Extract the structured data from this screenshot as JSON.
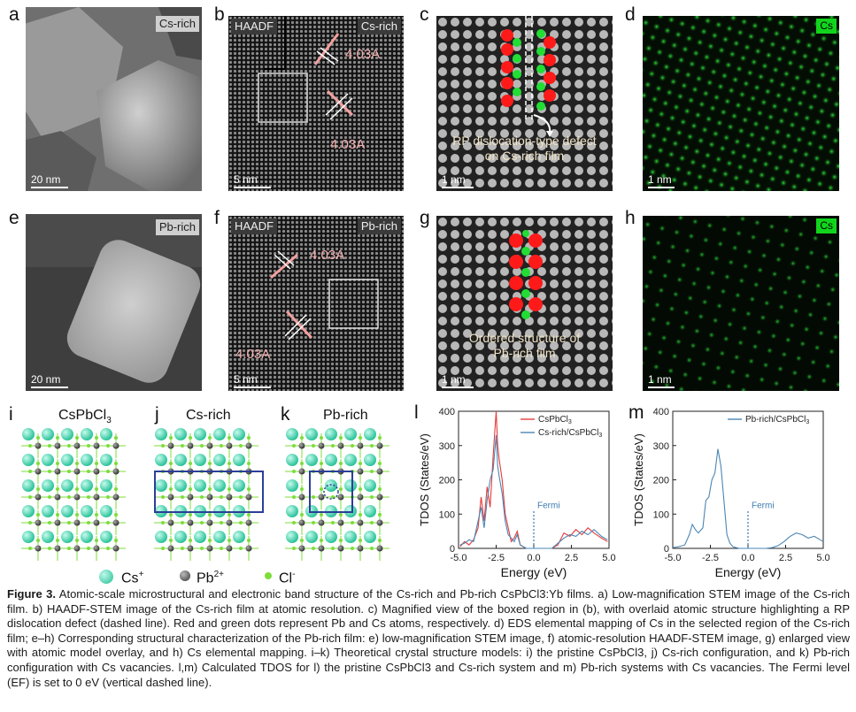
{
  "panels": {
    "a": {
      "letter": "a",
      "tag": "Cs-rich",
      "scale": "20 nm"
    },
    "b": {
      "letter": "b",
      "tag_left": "HAADF",
      "tag_right": "Cs-rich",
      "scale": "5 nm",
      "d1": "4.03A",
      "d2": "4.03A"
    },
    "c": {
      "letter": "c",
      "scale": "1 nm",
      "annot_line1": "RP dislocation-type defect",
      "annot_line2": "on Cs-rich film"
    },
    "d": {
      "letter": "d",
      "tag": "Cs",
      "scale": "1 nm"
    },
    "e": {
      "letter": "e",
      "tag": "Pb-rich",
      "scale": "20 nm"
    },
    "f": {
      "letter": "f",
      "tag_left": "HAADF",
      "tag_right": "Pb-rich",
      "scale": "5 nm",
      "d1": "4.03A",
      "d2": "4.03A"
    },
    "g": {
      "letter": "g",
      "scale": "1 nm",
      "annot_line1": "Ordered structure of",
      "annot_line2": "Pb-rich film"
    },
    "h": {
      "letter": "h",
      "tag": "Cs",
      "scale": "1 nm"
    },
    "i": {
      "letter": "i",
      "title": "CsPbCl",
      "title_sub": "3"
    },
    "j": {
      "letter": "j",
      "title": "Cs-rich"
    },
    "k": {
      "letter": "k",
      "title": "Pb-rich"
    },
    "l": {
      "letter": "l"
    },
    "m": {
      "letter": "m"
    }
  },
  "legend": {
    "cs": "Cs",
    "cs_sup": "+",
    "pb": "Pb",
    "pb_sup": "2+",
    "cl": "Cl",
    "cl_sup": "-"
  },
  "colors": {
    "pb_dot": "#ff1a1a",
    "cs_dot": "#22dd33",
    "cs_map": "#12d41d",
    "series_red": "#e83a3a",
    "series_blue": "#4a86b4"
  },
  "chart_data": [
    {
      "type": "line",
      "panel": "l",
      "xlabel": "Energy (eV)",
      "ylabel": "TDOS (States/eV)",
      "xlim": [
        -5.0,
        5.0
      ],
      "ylim": [
        0,
        400
      ],
      "xticks": [
        "-5.0",
        "-2.5",
        "0.0",
        "2.5",
        "5.0"
      ],
      "yticks": [
        "0",
        "100",
        "200",
        "300",
        "400"
      ],
      "fermi_label": "Fermi",
      "series": [
        {
          "name": "CsPbCl",
          "name_sub": "3",
          "color": "#e83a3a",
          "x": [
            -4.9,
            -4.6,
            -4.3,
            -4.0,
            -3.7,
            -3.5,
            -3.3,
            -3.1,
            -2.9,
            -2.7,
            -2.5,
            -2.4,
            -2.3,
            -2.1,
            -1.9,
            -1.7,
            -1.5,
            -1.3,
            -1.1,
            -0.9,
            -0.5,
            0.0,
            0.5,
            1.2,
            1.6,
            2.0,
            2.4,
            2.8,
            3.2,
            3.6,
            4.0,
            4.5,
            4.9
          ],
          "y": [
            5,
            20,
            10,
            25,
            60,
            150,
            80,
            180,
            120,
            270,
            400,
            300,
            260,
            200,
            100,
            60,
            20,
            30,
            50,
            10,
            0,
            0,
            0,
            0,
            10,
            45,
            35,
            55,
            40,
            60,
            45,
            30,
            20
          ]
        },
        {
          "name": "Cs-rich/CsPbCl",
          "name_sub": "3",
          "color": "#4a86b4",
          "x": [
            -4.9,
            -4.6,
            -4.3,
            -4.0,
            -3.7,
            -3.5,
            -3.3,
            -3.1,
            -2.9,
            -2.7,
            -2.5,
            -2.4,
            -2.3,
            -2.1,
            -1.9,
            -1.7,
            -1.5,
            -1.3,
            -1.1,
            -0.9,
            -0.5,
            0.0,
            0.5,
            1.2,
            1.6,
            2.0,
            2.4,
            2.8,
            3.2,
            3.6,
            4.0,
            4.5,
            4.9
          ],
          "y": [
            10,
            15,
            25,
            20,
            80,
            120,
            60,
            140,
            200,
            230,
            330,
            240,
            210,
            160,
            80,
            40,
            30,
            20,
            40,
            10,
            0,
            0,
            0,
            0,
            15,
            30,
            40,
            35,
            50,
            40,
            55,
            35,
            25
          ]
        }
      ]
    },
    {
      "type": "line",
      "panel": "m",
      "xlabel": "Energy (eV)",
      "ylabel": "TDOS (States/eV)",
      "xlim": [
        -5.0,
        5.0
      ],
      "ylim": [
        0,
        400
      ],
      "xticks": [
        "-5.0",
        "-2.5",
        "0.0",
        "2.5",
        "5.0"
      ],
      "yticks": [
        "0",
        "100",
        "200",
        "300",
        "400"
      ],
      "fermi_label": "Fermi",
      "series": [
        {
          "name": "Pb-rich/CsPbCl",
          "name_sub": "3",
          "color": "#4a86b4",
          "x": [
            -5.0,
            -4.6,
            -4.2,
            -3.9,
            -3.7,
            -3.5,
            -3.3,
            -3.0,
            -2.8,
            -2.6,
            -2.4,
            -2.2,
            -2.0,
            -1.8,
            -1.6,
            -1.4,
            -1.2,
            -1.0,
            -0.6,
            0.0,
            0.6,
            1.2,
            1.6,
            2.0,
            2.4,
            2.8,
            3.2,
            3.6,
            4.0,
            4.4,
            4.8,
            5.0
          ],
          "y": [
            2,
            5,
            10,
            40,
            70,
            55,
            45,
            60,
            140,
            150,
            200,
            220,
            290,
            240,
            140,
            40,
            15,
            5,
            0,
            0,
            0,
            0,
            2,
            8,
            20,
            35,
            45,
            40,
            30,
            35,
            25,
            20
          ]
        }
      ]
    }
  ],
  "caption": {
    "fig": "Figure 3.",
    "text": "Atomic-scale microstructural and electronic band structure of the Cs-rich and Pb-rich CsPbCl3:Yb films. a) Low-magnification STEM image of the Cs-rich film. b) HAADF-STEM image of the Cs-rich film at atomic resolution. c) Magnified view of the boxed region in (b), with overlaid atomic structure highlighting a RP dislocation defect (dashed line). Red and green dots represent Pb and Cs atoms, respectively. d) EDS elemental mapping of Cs in the selected region of the Cs-rich film; e–h) Corresponding structural characterization of the Pb-rich film: e) low-magnification STEM image, f) atomic-resolution HAADF-STEM image, g) enlarged view with atomic model overlay, and h) Cs elemental mapping. i–k) Theoretical crystal structure models: i) the pristine CsPbCl3, j) Cs-rich configuration, and k) Pb-rich configuration with Cs vacancies. l,m) Calculated TDOS for l) the pristine CsPbCl3 and Cs-rich system and m) Pb-rich systems with Cs vacancies. The Fermi level (EF) is set to 0 eV (vertical dashed line)."
  }
}
